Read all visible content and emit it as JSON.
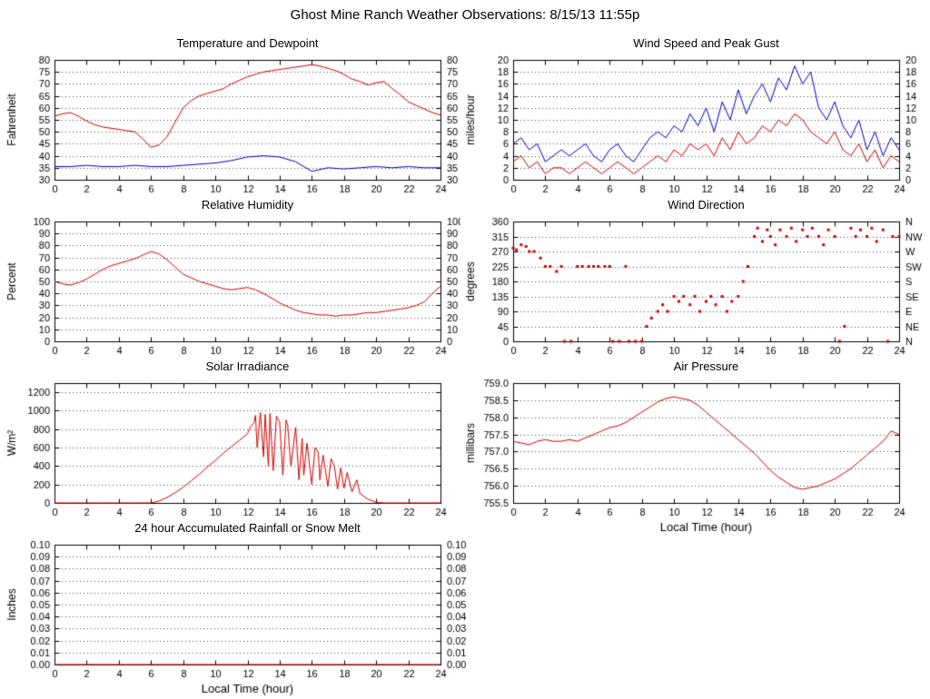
{
  "page_title": "Ghost Mine Ranch Weather Observations: 8/15/13 11:55p",
  "x_axis": {
    "label": "Local Time (hour)",
    "min": 0,
    "max": 24,
    "tick_step": 2
  },
  "colors": {
    "red_series": "#d40000",
    "blue_series": "#0000c8",
    "grid": "#444444",
    "axis": "#000000"
  },
  "chart_data": [
    {
      "id": "temperature",
      "type": "line",
      "title": "Temperature and Dewpoint",
      "ylabel": "Fahrenheit",
      "ylim": [
        30,
        80
      ],
      "ytick_step": 5,
      "ydecimals": 0,
      "right_labels": "same",
      "xlabel": null,
      "series": [
        {
          "name": "Dewpoint",
          "color": "#0000c8",
          "x": [
            0,
            1,
            2,
            3,
            4,
            5,
            6,
            7,
            8,
            9,
            10,
            11,
            12,
            13,
            14,
            15,
            16,
            17,
            18,
            19,
            20,
            21,
            22,
            23,
            24
          ],
          "y": [
            35.5,
            35.5,
            36,
            35.5,
            35.5,
            36,
            35.5,
            35.5,
            36,
            36.5,
            37,
            38,
            39.5,
            40,
            39.5,
            37.5,
            33.5,
            35,
            34.5,
            35,
            35.5,
            35,
            35.5,
            35,
            35
          ]
        },
        {
          "name": "Temperature",
          "color": "#d40000",
          "x": [
            0,
            0.5,
            1,
            1.5,
            2,
            2.5,
            3,
            3.5,
            4,
            4.5,
            5,
            5.5,
            6,
            6.5,
            7,
            7.5,
            8,
            8.5,
            9,
            9.5,
            10,
            10.5,
            11,
            11.5,
            12,
            12.5,
            13,
            13.5,
            14,
            14.5,
            15,
            15.5,
            16,
            16.5,
            17,
            17.5,
            18,
            18.5,
            19,
            19.5,
            20,
            20.5,
            21,
            21.5,
            22,
            22.5,
            23,
            23.5,
            24
          ],
          "y": [
            56.5,
            57.5,
            58,
            56.5,
            54.5,
            53,
            52,
            51.5,
            51,
            50.5,
            50,
            47,
            43.5,
            44.5,
            48,
            54,
            60,
            63,
            65,
            66,
            67,
            68,
            70,
            71.5,
            73,
            74,
            75,
            75.5,
            76,
            76.5,
            77,
            77.5,
            78,
            77.5,
            76.5,
            75.5,
            74,
            72,
            71,
            69.5,
            70.5,
            71,
            68,
            65.5,
            62.5,
            61,
            59.5,
            58,
            57
          ]
        }
      ]
    },
    {
      "id": "wind",
      "type": "line",
      "title": "Wind Speed and Peak Gust",
      "ylabel": "miles/hour",
      "ylim": [
        0,
        20
      ],
      "ytick_step": 2,
      "ydecimals": 0,
      "right_labels": "same",
      "xlabel": null,
      "series": [
        {
          "name": "Peak Gust",
          "color": "#0000c8",
          "x": [
            0,
            0.5,
            1,
            1.5,
            2,
            2.5,
            3,
            3.5,
            4,
            4.5,
            5,
            5.5,
            6,
            6.5,
            7,
            7.5,
            8,
            8.5,
            9,
            9.5,
            10,
            10.5,
            11,
            11.5,
            12,
            12.5,
            13,
            13.5,
            14,
            14.5,
            15,
            15.5,
            16,
            16.5,
            17,
            17.5,
            18,
            18.5,
            19,
            19.5,
            20,
            20.5,
            21,
            21.5,
            22,
            22.5,
            23,
            23.5,
            24
          ],
          "y": [
            6,
            7,
            5,
            6,
            3,
            4,
            5,
            4,
            5,
            6,
            4,
            3,
            5,
            6,
            4,
            3,
            5,
            7,
            8,
            7,
            9,
            8,
            11,
            9,
            12,
            8,
            13,
            10,
            15,
            11,
            14,
            16,
            13,
            17,
            15,
            19,
            16,
            18,
            12,
            10,
            13,
            9,
            7,
            10,
            5,
            8,
            4,
            7,
            5
          ]
        },
        {
          "name": "Wind Speed",
          "color": "#d40000",
          "x": [
            0,
            0.5,
            1,
            1.5,
            2,
            2.5,
            3,
            3.5,
            4,
            4.5,
            5,
            5.5,
            6,
            6.5,
            7,
            7.5,
            8,
            8.5,
            9,
            9.5,
            10,
            10.5,
            11,
            11.5,
            12,
            12.5,
            13,
            13.5,
            14,
            14.5,
            15,
            15.5,
            16,
            16.5,
            17,
            17.5,
            18,
            18.5,
            19,
            19.5,
            20,
            20.5,
            21,
            21.5,
            22,
            22.5,
            23,
            23.5,
            24
          ],
          "y": [
            3,
            4,
            2,
            3,
            1,
            2,
            2,
            1,
            2,
            3,
            2,
            1,
            2,
            3,
            2,
            1,
            2,
            3,
            4,
            3,
            5,
            4,
            6,
            5,
            6,
            4,
            7,
            5,
            8,
            6,
            7,
            9,
            8,
            10,
            9,
            11,
            10,
            8,
            7,
            6,
            8,
            5,
            4,
            6,
            3,
            5,
            2,
            4,
            3
          ]
        }
      ]
    },
    {
      "id": "humidity",
      "type": "line",
      "title": "Relative Humidity",
      "ylabel": "Percent",
      "ylim": [
        0,
        100
      ],
      "ytick_step": 10,
      "ydecimals": 0,
      "right_labels": "same",
      "xlabel": null,
      "series": [
        {
          "name": "Relative Humidity",
          "color": "#d40000",
          "x": [
            0,
            0.5,
            1,
            1.5,
            2,
            2.5,
            3,
            3.5,
            4,
            4.5,
            5,
            5.5,
            6,
            6.5,
            7,
            7.5,
            8,
            8.5,
            9,
            9.5,
            10,
            10.5,
            11,
            11.5,
            12,
            12.5,
            13,
            13.5,
            14,
            14.5,
            15,
            15.5,
            16,
            16.5,
            17,
            17.5,
            18,
            18.5,
            19,
            19.5,
            20,
            20.5,
            21,
            21.5,
            22,
            22.5,
            23,
            23.5,
            24
          ],
          "y": [
            50,
            48,
            47,
            49,
            52,
            56,
            60,
            63,
            65,
            67,
            69,
            72,
            75,
            73,
            68,
            62,
            56,
            53,
            50,
            48,
            46,
            44,
            43,
            44,
            45,
            43,
            40,
            36,
            32,
            29,
            26,
            24,
            23,
            22,
            22,
            21,
            22,
            22,
            23,
            24,
            24,
            25,
            26,
            27,
            28,
            30,
            33,
            40,
            46
          ]
        }
      ]
    },
    {
      "id": "wind_direction",
      "type": "scatter",
      "title": "Wind Direction",
      "ylabel": "degrees",
      "ylim": [
        0,
        360
      ],
      "ytick_step": 45,
      "ydecimals": 0,
      "right_labels": [
        "N",
        "NE",
        "E",
        "SE",
        "S",
        "SW",
        "W",
        "NW",
        "N"
      ],
      "xlabel": null,
      "series": [
        {
          "name": "Wind Direction",
          "color": "#d40000",
          "x": [
            0,
            0.2,
            0.5,
            0.8,
            1,
            1.3,
            1.7,
            2,
            2.3,
            2.7,
            3,
            3.2,
            3.6,
            4,
            4.3,
            4.7,
            5,
            5.3,
            5.7,
            6,
            6.2,
            6.6,
            7,
            7.2,
            7.6,
            8,
            8.3,
            8.6,
            9,
            9.3,
            9.6,
            10,
            10.3,
            10.6,
            11,
            11.3,
            11.6,
            12,
            12.3,
            12.6,
            13,
            13.3,
            13.6,
            14,
            14.3,
            14.6,
            15,
            15.2,
            15.5,
            15.8,
            16,
            16.3,
            16.6,
            17,
            17.3,
            17.6,
            18,
            18.3,
            18.6,
            19,
            19.3,
            19.6,
            20,
            20.3,
            20.6,
            21,
            21.3,
            21.6,
            22,
            22.3,
            22.6,
            23,
            23.3,
            23.6,
            24
          ],
          "y": [
            280,
            275,
            290,
            285,
            270,
            270,
            250,
            225,
            225,
            210,
            225,
            0,
            0,
            225,
            225,
            225,
            225,
            225,
            225,
            225,
            0,
            0,
            225,
            0,
            0,
            0,
            45,
            70,
            90,
            110,
            90,
            135,
            120,
            135,
            110,
            135,
            90,
            120,
            135,
            110,
            135,
            90,
            120,
            135,
            180,
            225,
            315,
            340,
            300,
            335,
            315,
            290,
            335,
            315,
            340,
            300,
            335,
            315,
            340,
            315,
            290,
            335,
            315,
            0,
            45,
            340,
            315,
            335,
            315,
            340,
            300,
            335,
            0,
            315,
            315
          ]
        }
      ]
    },
    {
      "id": "solar",
      "type": "line",
      "title": "Solar Irradiance",
      "ylabel": "W/m²",
      "ylim": [
        0,
        1300
      ],
      "ytick_step": 200,
      "ytick_max": 1200,
      "ydecimals": 0,
      "right_labels": null,
      "xlabel": null,
      "series": [
        {
          "name": "Solar Irradiance",
          "color": "#d40000",
          "x": [
            0,
            1,
            2,
            3,
            4,
            5,
            6,
            6.5,
            7,
            7.5,
            8,
            8.5,
            9,
            9.5,
            10,
            10.5,
            11,
            11.5,
            12,
            12.2,
            12.4,
            12.5,
            12.6,
            12.8,
            13,
            13.1,
            13.3,
            13.4,
            13.6,
            13.8,
            14,
            14.2,
            14.4,
            14.5,
            14.7,
            15,
            15.2,
            15.4,
            15.5,
            15.7,
            16,
            16.2,
            16.4,
            16.5,
            16.7,
            17,
            17.2,
            17.4,
            17.6,
            17.8,
            18,
            18.2,
            18.5,
            18.8,
            19,
            19.5,
            20,
            20.5,
            21,
            22,
            23,
            24
          ],
          "y": [
            0,
            0,
            0,
            0,
            0,
            0,
            0,
            20,
            60,
            110,
            170,
            240,
            310,
            390,
            460,
            540,
            610,
            680,
            750,
            830,
            870,
            950,
            600,
            980,
            500,
            960,
            400,
            970,
            350,
            940,
            880,
            300,
            900,
            840,
            400,
            820,
            250,
            700,
            300,
            650,
            200,
            600,
            550,
            250,
            520,
            180,
            480,
            400,
            150,
            380,
            160,
            330,
            120,
            250,
            100,
            40,
            5,
            0,
            0,
            0,
            0,
            0
          ]
        }
      ]
    },
    {
      "id": "pressure",
      "type": "line",
      "title": "Air Pressure",
      "ylabel": "millibars",
      "ylim": [
        755.5,
        759.0
      ],
      "ytick_step": 0.5,
      "ydecimals": 1,
      "right_labels": null,
      "xlabel": "Local Time (hour)",
      "series": [
        {
          "name": "Air Pressure",
          "color": "#d40000",
          "x": [
            0,
            0.5,
            1,
            1.5,
            2,
            2.5,
            3,
            3.5,
            4,
            4.5,
            5,
            5.5,
            6,
            6.5,
            7,
            7.5,
            8,
            8.5,
            9,
            9.5,
            10,
            10.5,
            11,
            11.5,
            12,
            12.5,
            13,
            13.5,
            14,
            14.5,
            15,
            15.5,
            16,
            16.5,
            17,
            17.5,
            18,
            18.5,
            19,
            19.5,
            20,
            20.5,
            21,
            21.5,
            22,
            22.5,
            23,
            23.5,
            24
          ],
          "y": [
            757.3,
            757.25,
            757.2,
            757.3,
            757.35,
            757.3,
            757.3,
            757.35,
            757.3,
            757.4,
            757.5,
            757.6,
            757.7,
            757.75,
            757.85,
            758.0,
            758.15,
            758.3,
            758.45,
            758.55,
            758.6,
            758.55,
            758.5,
            758.35,
            758.15,
            757.95,
            757.75,
            757.55,
            757.35,
            757.15,
            756.95,
            756.7,
            756.45,
            756.25,
            756.1,
            755.95,
            755.9,
            755.95,
            756.0,
            756.1,
            756.2,
            756.35,
            756.5,
            756.7,
            756.9,
            757.1,
            757.3,
            757.6,
            757.5
          ]
        }
      ]
    },
    {
      "id": "rain",
      "type": "line",
      "title": "24 hour Accumulated Rainfall or Snow Melt",
      "ylabel": "Inches",
      "ylim": [
        0,
        0.1
      ],
      "ytick_step": 0.01,
      "ydecimals": 2,
      "right_labels": "same",
      "xlabel": "Local Time (hour)",
      "series": [
        {
          "name": "Rainfall",
          "color": "#d40000",
          "x": [
            0,
            24
          ],
          "y": [
            0,
            0
          ]
        }
      ]
    }
  ]
}
